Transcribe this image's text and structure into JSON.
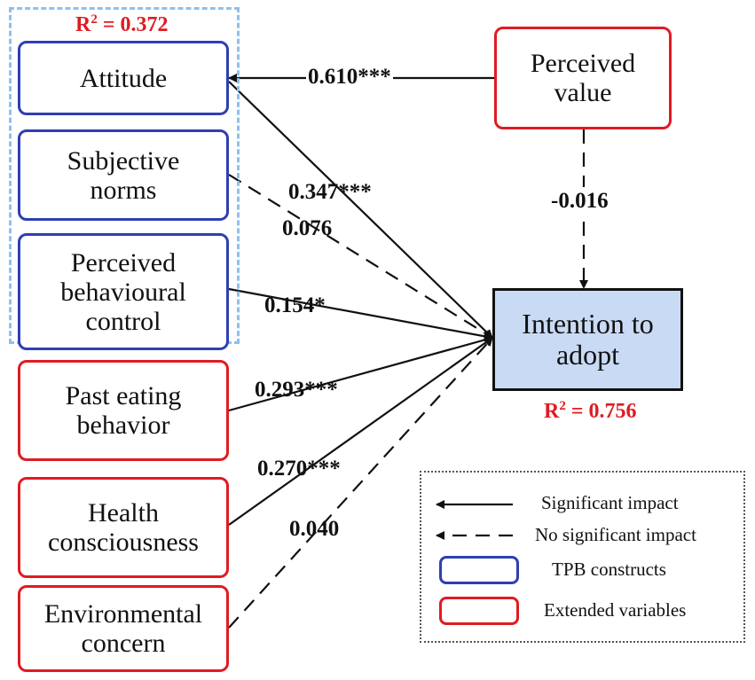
{
  "nodes": {
    "attitude": "Attitude",
    "subjective_norms": "Subjective\nnorms",
    "pbc": "Perceived\nbehavioural\ncontrol",
    "past_eating": "Past eating\nbehavior",
    "health": "Health\nconsciousness",
    "environmental": "Environmental\nconcern",
    "perceived_value": "Perceived\nvalue",
    "intention": "Intention to\nadopt"
  },
  "r2": {
    "tpb_label": "R",
    "tpb_sup": "2",
    "tpb_value": " = 0.372",
    "intention_label": "R",
    "intention_sup": "2",
    "intention_value": " = 0.756"
  },
  "paths": {
    "pv_attitude": "0.610***",
    "attitude_intention": "0.347***",
    "sn_intention": "0.076",
    "pbc_intention": "0.154*",
    "past_intention": "0.293***",
    "health_intention": "0.270***",
    "env_intention": "0.040",
    "pv_intention": "-0.016"
  },
  "legend": {
    "significant": "Significant impact",
    "nonsignificant": "No significant impact",
    "tpb": "TPB constructs",
    "extended": "Extended variables"
  },
  "colors": {
    "tpb_border": "#2e3fb3",
    "extended_border": "#e01b22",
    "target_fill": "#c9daf4",
    "group_dash": "#8ec0ee",
    "r2_text": "#e01b22"
  }
}
